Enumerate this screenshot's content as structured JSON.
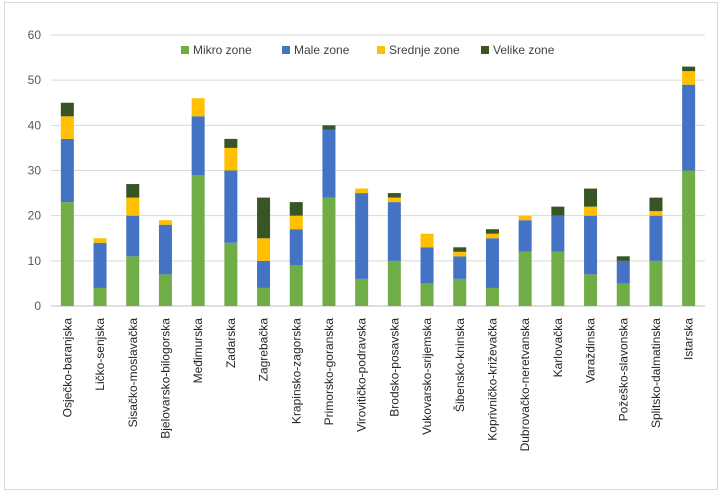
{
  "chart_data": {
    "type": "bar",
    "stacked": true,
    "title": "",
    "xlabel": "",
    "ylabel": "",
    "ylim": [
      0,
      60
    ],
    "yticks": [
      0,
      10,
      20,
      30,
      40,
      50,
      60
    ],
    "grid": true,
    "legend_position": "top",
    "categories": [
      "Osječko-baranjska",
      "Ličko-senjska",
      "Sisačko-moslavačka",
      "Bjelovarsko-bilogorska",
      "Međimurska",
      "Zadarska",
      "Zagrebačka",
      "Krapinsko-zagorska",
      "Primorsko-goranska",
      "Virovitičko-podravska",
      "Brodsko-posavska",
      "Vukovarsko-srijemska",
      "Šibensko-kninska",
      "Koprivničko-križevačka",
      "Dubrovačko-neretvanska",
      "Karlovačka",
      "Varaždinska",
      "Požeško-slavonska",
      "Splitsko-dalmatinska",
      "Istarska"
    ],
    "series": [
      {
        "name": "Mikro zone",
        "color": "#70ad47",
        "values": [
          23,
          4,
          11,
          7,
          29,
          14,
          4,
          9,
          24,
          6,
          10,
          5,
          6,
          4,
          12,
          12,
          7,
          5,
          10,
          30
        ]
      },
      {
        "name": "Male zone",
        "color": "#4472c4",
        "values": [
          14,
          10,
          9,
          11,
          13,
          16,
          6,
          8,
          15,
          19,
          13,
          8,
          5,
          11,
          7,
          8,
          13,
          5,
          10,
          19
        ]
      },
      {
        "name": "Srednje zone",
        "color": "#ffc000",
        "values": [
          5,
          1,
          4,
          1,
          4,
          5,
          5,
          3,
          0,
          1,
          1,
          3,
          1,
          1,
          1,
          0,
          2,
          0,
          1,
          3
        ]
      },
      {
        "name": "Velike zone",
        "color": "#375623",
        "values": [
          3,
          0,
          3,
          0,
          0,
          2,
          9,
          3,
          1,
          0,
          1,
          0,
          1,
          1,
          0,
          2,
          4,
          1,
          3,
          1
        ]
      }
    ]
  }
}
